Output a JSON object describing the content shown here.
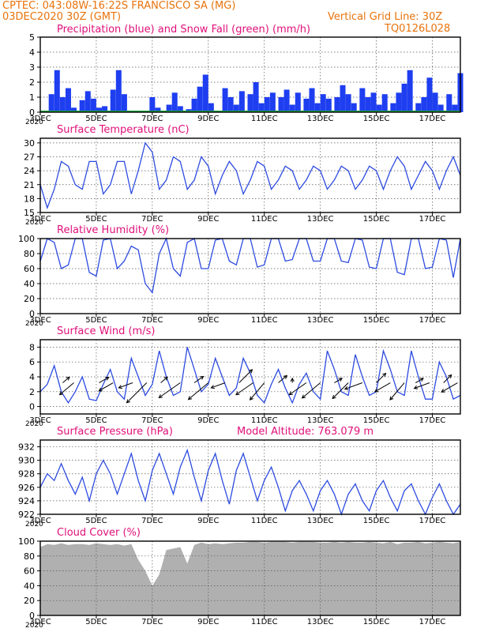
{
  "header": {
    "line1_left": "CPTEC:   043:08W-16:22S   FRANCISCO SA (MG)",
    "line2_left": "03DEC2020 30Z (GMT)",
    "line2_right": "Vertical Grid Line: 30Z",
    "code": "TQ0126L028",
    "model_altitude": "Model Altitude: 763.079 m"
  },
  "x_ticks": [
    "3DEC",
    "5DEC",
    "7DEC",
    "9DEC",
    "11DEC",
    "13DEC",
    "15DEC",
    "17DEC"
  ],
  "x_overlap_text": "2020",
  "colors": {
    "header": "#e8730c",
    "title": "#e0107a",
    "line": "#2d4be0",
    "bar": "#1e3ef0",
    "snow": "#1fa640",
    "cloud": "#b0b0b0",
    "arrow": "#000000",
    "grid": "#555555"
  },
  "chart_data": [
    {
      "type": "bar",
      "title": "Precipitation (blue) and Snow Fall (green) (mm/h)",
      "x_domain": [
        "3DEC",
        "18DEC"
      ],
      "ylim": [
        0,
        5
      ],
      "yticks": [
        0,
        1,
        2,
        3,
        4,
        5
      ],
      "grid": true,
      "series": [
        {
          "name": "Precipitation",
          "x": [
            3.4,
            3.6,
            3.8,
            4.0,
            4.2,
            4.5,
            4.7,
            4.9,
            5.1,
            5.3,
            5.6,
            5.8,
            6.0,
            6.2,
            6.8,
            7.0,
            7.2,
            7.6,
            7.8,
            8.0,
            8.3,
            8.5,
            8.7,
            8.9,
            9.1,
            9.6,
            9.8,
            10.0,
            10.2,
            10.5,
            10.7,
            10.9,
            11.1,
            11.3,
            11.6,
            11.8,
            12.0,
            12.2,
            12.5,
            12.7,
            12.9,
            13.1,
            13.3,
            13.6,
            13.8,
            14.0,
            14.2,
            14.5,
            14.7,
            14.9,
            15.1,
            15.3,
            15.6,
            15.8,
            16.0,
            16.2,
            16.5,
            16.7,
            16.9,
            17.1,
            17.3,
            17.6,
            17.8,
            18.0
          ],
          "values": [
            1.2,
            2.8,
            1.0,
            1.6,
            0.3,
            0.8,
            1.4,
            0.9,
            0.3,
            0.4,
            1.5,
            2.8,
            1.2,
            0.1,
            0.1,
            1.0,
            0.3,
            0.5,
            1.3,
            0.4,
            0.2,
            0.9,
            1.7,
            2.5,
            0.6,
            1.6,
            1.0,
            0.5,
            1.4,
            1.2,
            2.0,
            0.6,
            1.0,
            1.3,
            1.0,
            1.5,
            0.5,
            1.3,
            0.9,
            1.6,
            0.6,
            1.2,
            0.9,
            1.0,
            1.8,
            1.2,
            0.6,
            1.6,
            1.0,
            1.3,
            0.5,
            1.2,
            0.6,
            1.3,
            1.9,
            2.8,
            0.6,
            1.0,
            2.3,
            1.3,
            0.5,
            1.2,
            0.5,
            2.6
          ]
        },
        {
          "name": "Snow Fall",
          "values": [
            0
          ]
        }
      ]
    },
    {
      "type": "line",
      "title": "Surface Temperature (nC)",
      "ylim": [
        15,
        31
      ],
      "yticks": [
        15,
        18,
        21,
        24,
        27,
        30
      ],
      "grid": true,
      "x": [
        3.0,
        3.25,
        3.5,
        3.75,
        4.0,
        4.25,
        4.5,
        4.75,
        5.0,
        5.25,
        5.5,
        5.75,
        6.0,
        6.25,
        6.5,
        6.75,
        7.0,
        7.25,
        7.5,
        7.75,
        8.0,
        8.25,
        8.5,
        8.75,
        9.0,
        9.25,
        9.5,
        9.75,
        10.0,
        10.25,
        10.5,
        10.75,
        11.0,
        11.25,
        11.5,
        11.75,
        12.0,
        12.25,
        12.5,
        12.75,
        13.0,
        13.25,
        13.5,
        13.75,
        14.0,
        14.25,
        14.5,
        14.75,
        15.0,
        15.25,
        15.5,
        15.75,
        16.0,
        16.25,
        16.5,
        16.75,
        17.0,
        17.25,
        17.5,
        17.75,
        18.0
      ],
      "values": [
        21,
        16,
        20,
        26,
        25,
        21,
        20,
        26,
        26,
        19,
        21,
        26,
        26,
        19,
        24,
        30,
        28,
        20,
        22,
        27,
        26,
        20,
        22,
        27,
        25,
        19,
        23,
        26,
        24,
        19,
        22,
        26,
        25,
        20,
        22,
        25,
        24,
        20,
        22,
        25,
        24,
        20,
        22,
        25,
        24,
        20,
        22,
        25,
        24,
        20,
        24,
        27,
        25,
        20,
        23,
        26,
        24,
        20,
        24,
        27,
        23
      ]
    },
    {
      "type": "line",
      "title": "Relative Humidity (%)",
      "ylim": [
        0,
        100
      ],
      "yticks": [
        0,
        20,
        40,
        60,
        80,
        100
      ],
      "grid": true,
      "x": [
        3.0,
        3.25,
        3.5,
        3.75,
        4.0,
        4.25,
        4.5,
        4.75,
        5.0,
        5.25,
        5.5,
        5.75,
        6.0,
        6.25,
        6.5,
        6.75,
        7.0,
        7.25,
        7.5,
        7.75,
        8.0,
        8.25,
        8.5,
        8.75,
        9.0,
        9.25,
        9.5,
        9.75,
        10.0,
        10.25,
        10.5,
        10.75,
        11.0,
        11.25,
        11.5,
        11.75,
        12.0,
        12.25,
        12.5,
        12.75,
        13.0,
        13.25,
        13.5,
        13.75,
        14.0,
        14.25,
        14.5,
        14.75,
        15.0,
        15.25,
        15.5,
        15.75,
        16.0,
        16.25,
        16.5,
        16.75,
        17.0,
        17.25,
        17.5,
        17.75,
        18.0
      ],
      "values": [
        70,
        100,
        95,
        60,
        65,
        100,
        100,
        55,
        50,
        98,
        100,
        60,
        70,
        90,
        85,
        40,
        28,
        80,
        100,
        60,
        50,
        95,
        100,
        60,
        60,
        98,
        100,
        70,
        65,
        100,
        100,
        62,
        65,
        100,
        100,
        70,
        72,
        100,
        100,
        70,
        70,
        100,
        100,
        70,
        68,
        100,
        98,
        62,
        60,
        100,
        100,
        55,
        52,
        100,
        100,
        60,
        62,
        100,
        98,
        48,
        100
      ]
    },
    {
      "type": "line",
      "title": "Surface Wind (m/s)",
      "ylim": [
        -1,
        9
      ],
      "yticks": [
        0,
        2,
        4,
        6,
        8
      ],
      "grid": true,
      "x": [
        3.0,
        3.25,
        3.5,
        3.75,
        4.0,
        4.25,
        4.5,
        4.75,
        5.0,
        5.25,
        5.5,
        5.75,
        6.0,
        6.25,
        6.5,
        6.75,
        7.0,
        7.25,
        7.5,
        7.75,
        8.0,
        8.25,
        8.5,
        8.75,
        9.0,
        9.25,
        9.5,
        9.75,
        10.0,
        10.25,
        10.5,
        10.75,
        11.0,
        11.25,
        11.5,
        11.75,
        12.0,
        12.25,
        12.5,
        12.75,
        13.0,
        13.25,
        13.5,
        13.75,
        14.0,
        14.25,
        14.5,
        14.75,
        15.0,
        15.25,
        15.5,
        15.75,
        16.0,
        16.25,
        16.5,
        16.75,
        17.0,
        17.25,
        17.5,
        17.75,
        18.0
      ],
      "values": [
        2,
        3,
        5.5,
        2,
        0.5,
        2,
        4,
        1,
        0.8,
        3,
        5,
        2,
        1,
        6.5,
        4,
        1.5,
        3,
        7.5,
        4,
        1.5,
        2,
        8,
        5,
        2,
        3,
        6.5,
        4,
        1.5,
        2.5,
        6.5,
        4.5,
        1.5,
        0.5,
        3,
        5,
        2.5,
        0.5,
        3,
        4.5,
        2,
        1,
        7.5,
        5,
        2,
        1.5,
        7,
        4,
        1.5,
        2,
        7.5,
        5,
        2,
        1.5,
        7.5,
        4,
        1,
        1,
        6,
        4,
        1,
        1.5
      ],
      "arrows_x": [
        3.8,
        4.2,
        5.1,
        5.6,
        6.3,
        6.8,
        7.3,
        8.0,
        8.5,
        9.0,
        9.6,
        10.1,
        10.6,
        11.0,
        11.5,
        12.0,
        12.5,
        13.0,
        13.5,
        14.0,
        14.5,
        15.0,
        15.5,
        16.0,
        16.4,
        16.9,
        17.4,
        17.9
      ],
      "arrows_angle_deg": [
        40,
        220,
        30,
        210,
        200,
        225,
        40,
        215,
        35,
        220,
        200,
        45,
        215,
        230,
        40,
        90,
        215,
        220,
        30,
        225,
        200,
        45,
        210,
        230,
        30,
        200,
        45,
        210
      ],
      "arrows_len": [
        1.2,
        2.5,
        1.5,
        2.2,
        2.0,
        3.8,
        1.2,
        3.5,
        1.5,
        3.5,
        2.0,
        2.5,
        2.8,
        3.0,
        1.5,
        0.6,
        2.8,
        3.2,
        1.2,
        3.0,
        2.5,
        1.8,
        2.4,
        3.0,
        1.2,
        2.2,
        1.5,
        2.5
      ]
    },
    {
      "type": "line",
      "title": "Surface Pressure (hPa)",
      "ylim": [
        922,
        933
      ],
      "yticks": [
        922,
        924,
        926,
        928,
        930,
        932
      ],
      "grid": true,
      "x": [
        3.0,
        3.25,
        3.5,
        3.75,
        4.0,
        4.25,
        4.5,
        4.75,
        5.0,
        5.25,
        5.5,
        5.75,
        6.0,
        6.25,
        6.5,
        6.75,
        7.0,
        7.25,
        7.5,
        7.75,
        8.0,
        8.25,
        8.5,
        8.75,
        9.0,
        9.25,
        9.5,
        9.75,
        10.0,
        10.25,
        10.5,
        10.75,
        11.0,
        11.25,
        11.5,
        11.75,
        12.0,
        12.25,
        12.5,
        12.75,
        13.0,
        13.25,
        13.5,
        13.75,
        14.0,
        14.25,
        14.5,
        14.75,
        15.0,
        15.25,
        15.5,
        15.75,
        16.0,
        16.25,
        16.5,
        16.75,
        17.0,
        17.25,
        17.5,
        17.75,
        18.0
      ],
      "values": [
        926,
        928,
        927,
        929.5,
        927,
        925,
        927.5,
        924,
        928,
        930,
        928,
        925,
        928,
        931,
        927,
        924,
        928.5,
        931,
        928,
        925,
        929,
        931.5,
        927.5,
        924,
        928.5,
        931,
        927,
        923.5,
        928.5,
        931,
        927.5,
        924,
        927,
        929,
        926,
        922.5,
        925.5,
        927,
        925,
        922.5,
        925.5,
        927,
        925,
        922,
        925,
        926.5,
        924,
        922.5,
        925.5,
        927,
        924.5,
        922.5,
        925.5,
        926.5,
        924,
        922,
        924.5,
        926.5,
        924,
        922,
        923.5
      ]
    },
    {
      "type": "area",
      "title": "Cloud Cover (%)",
      "ylim": [
        0,
        100
      ],
      "yticks": [
        0,
        20,
        40,
        60,
        80,
        100
      ],
      "grid": true,
      "x": [
        3.0,
        3.25,
        3.5,
        3.75,
        4.0,
        4.25,
        4.5,
        4.75,
        5.0,
        5.25,
        5.5,
        5.75,
        6.0,
        6.25,
        6.5,
        6.75,
        7.0,
        7.25,
        7.5,
        7.75,
        8.0,
        8.25,
        8.5,
        8.75,
        9.0,
        9.25,
        9.5,
        9.75,
        10.0,
        10.25,
        10.5,
        10.75,
        11.0,
        11.25,
        11.5,
        11.75,
        12.0,
        12.25,
        12.5,
        12.75,
        13.0,
        13.25,
        13.5,
        13.75,
        14.0,
        14.25,
        14.5,
        14.75,
        15.0,
        15.25,
        15.5,
        15.75,
        16.0,
        16.25,
        16.5,
        16.75,
        17.0,
        17.25,
        17.5,
        17.75,
        18.0
      ],
      "values": [
        92,
        96,
        95,
        97,
        95,
        96,
        96,
        95,
        97,
        96,
        95,
        96,
        94,
        96,
        75,
        60,
        40,
        55,
        88,
        90,
        92,
        70,
        95,
        98,
        96,
        97,
        96,
        97,
        98,
        98,
        99,
        99,
        98,
        99,
        99,
        99,
        98,
        99,
        99,
        99,
        98,
        98,
        99,
        98,
        99,
        98,
        98,
        99,
        98,
        97,
        99,
        96,
        98,
        98,
        99,
        97,
        98,
        99,
        98,
        97,
        99
      ]
    }
  ]
}
